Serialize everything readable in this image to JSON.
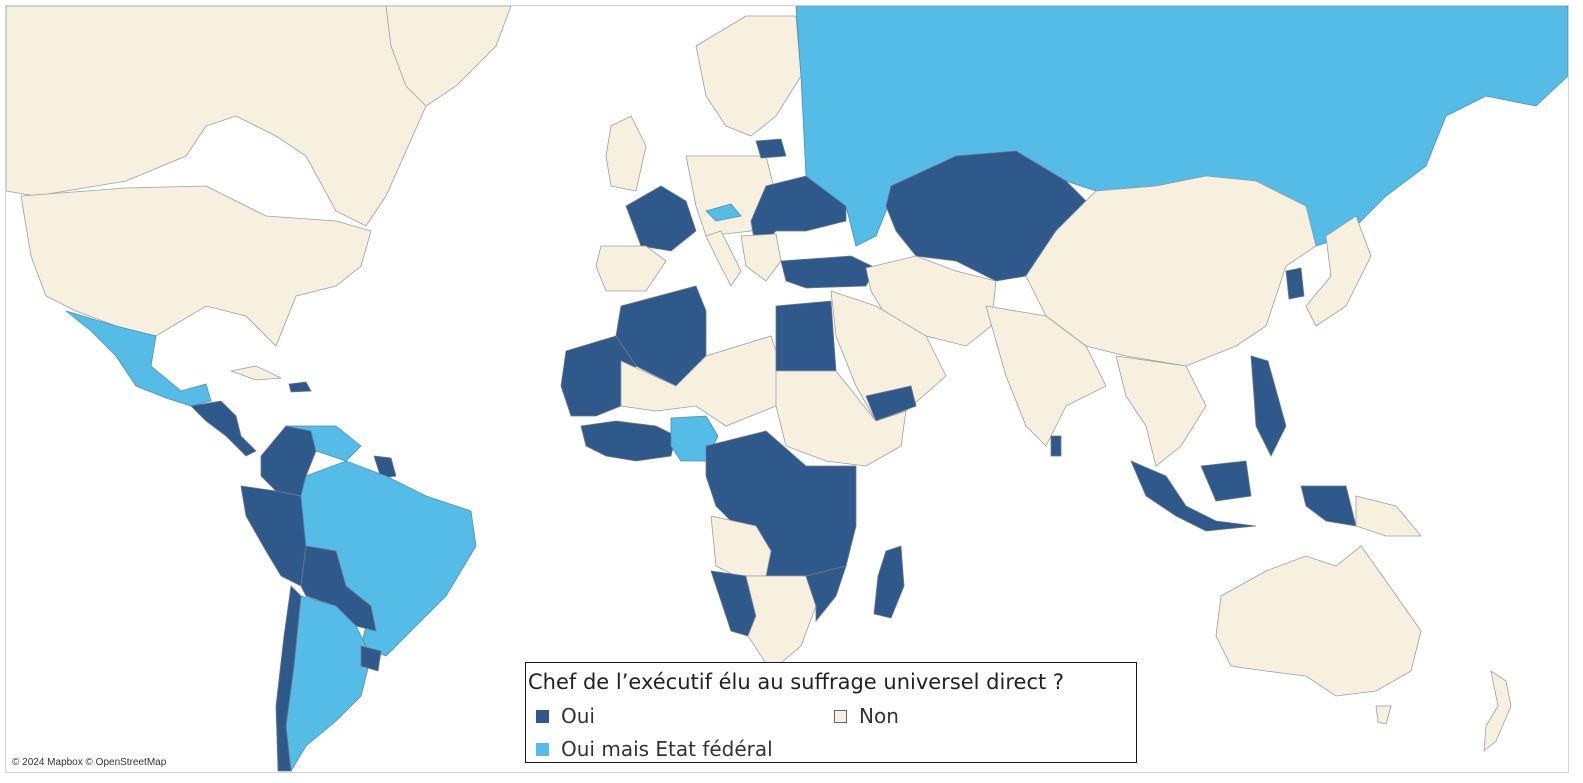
{
  "colors": {
    "oui": "#30598b",
    "non": "#f8f0df",
    "oui_federal": "#55bce8",
    "border": "#9aa0a6"
  },
  "legend": {
    "title": "Chef de l’exécutif élu au suffrage universel direct ?",
    "items": [
      {
        "label": "Oui",
        "color": "#30598b"
      },
      {
        "label": "Non",
        "color": "#f8f0df"
      },
      {
        "label": "Oui mais Etat fédéral",
        "color": "#55bce8"
      }
    ]
  },
  "map": {
    "attribution": "© 2024 Mapbox © OpenStreetMap"
  }
}
